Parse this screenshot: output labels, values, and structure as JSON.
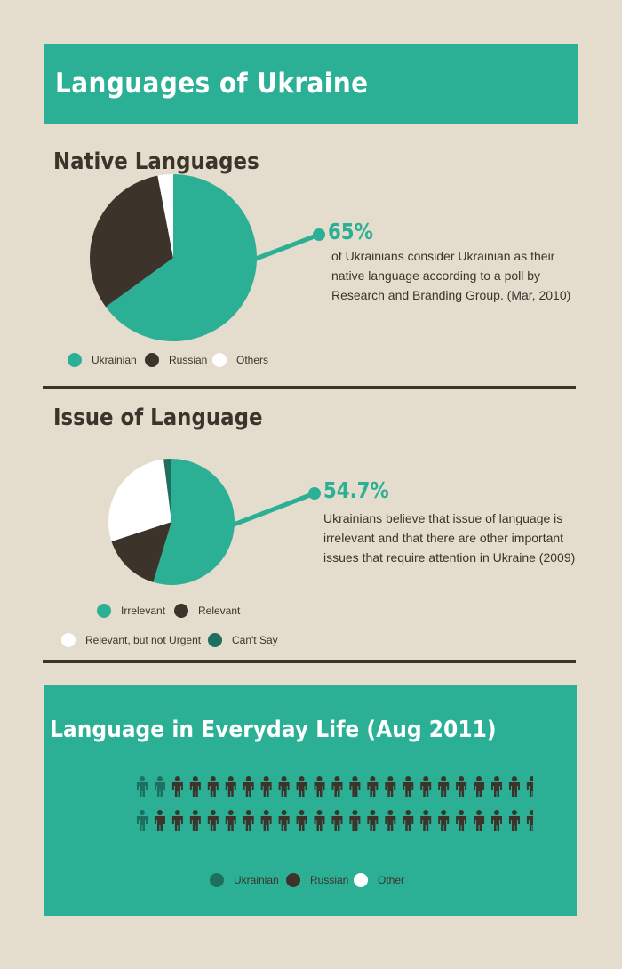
{
  "title": "Languages of Ukraine",
  "colors": {
    "teal": "#2bb095",
    "dark": "#3c342b",
    "white": "#ffffff",
    "dark_teal": "#1f6f60",
    "bg": "#e4dccd"
  },
  "native": {
    "heading": "Native Languages",
    "stat": "65%",
    "description": "of Ukrainians consider Ukrainian as their native language according to a poll by Research and Branding Group. (Mar, 2010)",
    "legend": [
      "Ukrainian",
      "Russian",
      "Others"
    ]
  },
  "issue": {
    "heading": "Issue of Language",
    "stat": "54.7%",
    "description": "Ukrainians believe that issue of language is irrelevant and that there are other important issues that require attention in Ukraine (2009)",
    "legend": [
      "Irrelevant",
      "Relevant",
      "Relevant, but not Urgent",
      "Can't Say"
    ]
  },
  "everyday": {
    "heading": "Language in Everyday Life (Aug 2011)",
    "legend": [
      "Ukrainian",
      "Russian",
      "Other"
    ]
  },
  "chart_data": [
    {
      "type": "pie",
      "title": "Native Languages",
      "categories": [
        "Ukrainian",
        "Russian",
        "Others"
      ],
      "values": [
        65,
        32,
        3
      ],
      "colors": [
        "#2bb095",
        "#3c342b",
        "#ffffff"
      ]
    },
    {
      "type": "pie",
      "title": "Issue of Language",
      "categories": [
        "Irrelevant",
        "Relevant",
        "Relevant, but not Urgent",
        "Can't Say"
      ],
      "values": [
        54.7,
        15.3,
        28,
        2
      ],
      "colors": [
        "#2bb095",
        "#3c342b",
        "#ffffff",
        "#1f6f60"
      ]
    },
    {
      "type": "pictogram",
      "title": "Language in Everyday Life (Aug 2011)",
      "categories": [
        "Ukrainian",
        "Russian",
        "Other"
      ],
      "values": [
        3,
        46,
        1
      ],
      "colors": [
        "#1f6f60",
        "#3c342b",
        "#ffffff"
      ]
    }
  ]
}
